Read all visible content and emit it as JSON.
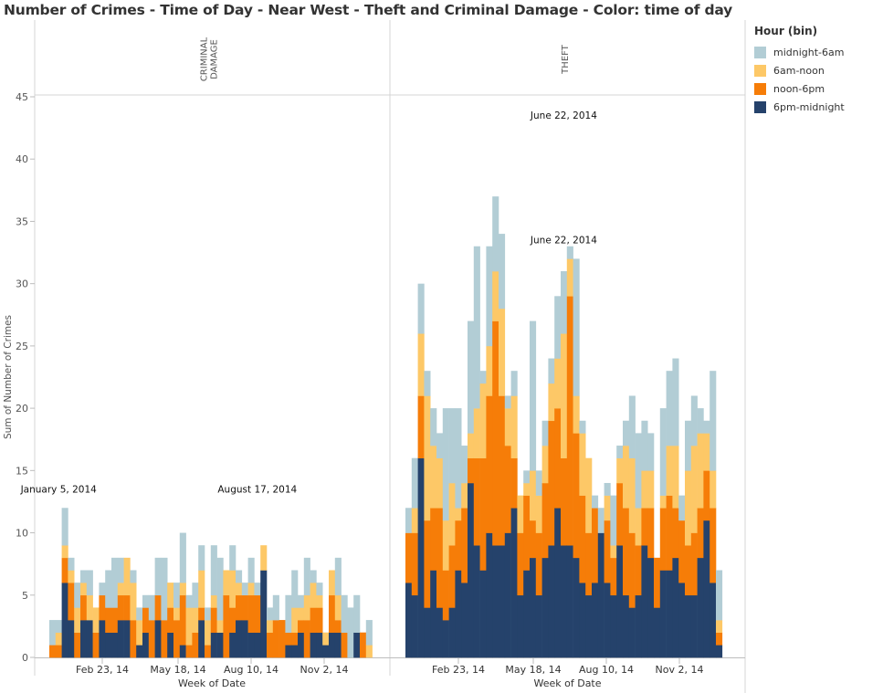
{
  "title": "Number of Crimes - Time of Day - Near West - Theft and Criminal Damage  - Color: time of day",
  "legend": {
    "title": "Hour (bin)",
    "items": [
      {
        "label": "midnight-6am",
        "color": "#b2cdd5"
      },
      {
        "label": "6am-noon",
        "color": "#fdc867"
      },
      {
        "label": "noon-6pm",
        "color": "#f67d08"
      },
      {
        "label": "6pm-midnight",
        "color": "#25426b"
      }
    ]
  },
  "chart_data": {
    "type": "bar",
    "stacked": true,
    "ylabel": "Sum of Number of Crimes",
    "xlabel": "Week of Date",
    "ylim": [
      0,
      45
    ],
    "yticks": [
      0,
      5,
      10,
      15,
      20,
      25,
      30,
      35,
      40,
      45
    ],
    "xticks": [
      "Feb 23, 14",
      "May 18, 14",
      "Aug 10, 14",
      "Nov 2, 14"
    ],
    "stack_order": [
      "6pm-midnight",
      "noon-6pm",
      "6am-noon",
      "midnight-6am"
    ],
    "panels": [
      {
        "name": "CRIMINAL DAMAGE",
        "weeks": 52,
        "series": [
          {
            "name": "6pm-midnight",
            "values": [
              0,
              0,
              6,
              3,
              0,
              3,
              3,
              0,
              3,
              2,
              2,
              3,
              3,
              0,
              1,
              2,
              0,
              3,
              0,
              2,
              0,
              1,
              0,
              0,
              3,
              0,
              2,
              2,
              0,
              2,
              3,
              3,
              2,
              2,
              7,
              0,
              0,
              0,
              1,
              1,
              2,
              0,
              2,
              2,
              1,
              2,
              2,
              0,
              0,
              2,
              0,
              0
            ]
          },
          {
            "name": "noon-6pm",
            "values": [
              1,
              1,
              2,
              3,
              2,
              2,
              0,
              2,
              2,
              2,
              2,
              2,
              2,
              3,
              0,
              2,
              3,
              2,
              3,
              2,
              3,
              4,
              1,
              2,
              1,
              1,
              2,
              0,
              5,
              2,
              2,
              2,
              3,
              3,
              0,
              2,
              3,
              3,
              1,
              1,
              1,
              3,
              2,
              2,
              0,
              3,
              1,
              2,
              0,
              0,
              2,
              0
            ]
          },
          {
            "name": "6am-noon",
            "values": [
              0,
              1,
              1,
              1,
              2,
              1,
              2,
              2,
              0,
              0,
              0,
              1,
              3,
              3,
              2,
              0,
              0,
              0,
              0,
              2,
              1,
              1,
              3,
              2,
              3,
              2,
              1,
              1,
              2,
              3,
              1,
              0,
              1,
              0,
              2,
              1,
              0,
              0,
              0,
              2,
              1,
              2,
              2,
              1,
              1,
              2,
              2,
              0,
              0,
              0,
              0,
              1
            ]
          },
          {
            "name": "midnight-6am",
            "values": [
              2,
              1,
              3,
              1,
              2,
              1,
              2,
              0,
              1,
              3,
              4,
              2,
              0,
              1,
              1,
              1,
              2,
              3,
              5,
              0,
              2,
              4,
              1,
              2,
              2,
              1,
              4,
              5,
              0,
              2,
              1,
              1,
              2,
              1,
              0,
              1,
              2,
              0,
              3,
              3,
              1,
              3,
              1,
              1,
              0,
              0,
              3,
              3,
              4,
              3,
              0,
              2
            ]
          }
        ],
        "annotations": [
          {
            "text": "January 5, 2014",
            "week": 1,
            "value": 12
          },
          {
            "text": "August 17, 2014",
            "week": 33,
            "value": 12
          }
        ]
      },
      {
        "name": "THEFT",
        "weeks": 52,
        "series": [
          {
            "name": "6pm-midnight",
            "values": [
              6,
              5,
              16,
              4,
              7,
              4,
              3,
              4,
              7,
              6,
              14,
              9,
              7,
              10,
              9,
              9,
              10,
              12,
              5,
              7,
              8,
              5,
              8,
              9,
              12,
              9,
              9,
              8,
              6,
              5,
              6,
              10,
              6,
              5,
              9,
              5,
              4,
              5,
              9,
              8,
              4,
              7,
              7,
              8,
              6,
              5,
              5,
              8,
              11,
              6,
              1,
              0
            ]
          },
          {
            "name": "noon-6pm",
            "values": [
              4,
              5,
              5,
              7,
              5,
              8,
              4,
              5,
              4,
              6,
              2,
              7,
              9,
              11,
              18,
              12,
              7,
              4,
              5,
              6,
              3,
              5,
              6,
              10,
              8,
              7,
              20,
              10,
              7,
              5,
              6,
              0,
              5,
              3,
              5,
              7,
              6,
              4,
              3,
              4,
              4,
              5,
              6,
              4,
              5,
              4,
              5,
              4,
              4,
              6,
              1,
              0
            ]
          },
          {
            "name": "6am-noon",
            "values": [
              0,
              2,
              5,
              10,
              5,
              4,
              4,
              5,
              1,
              2,
              2,
              4,
              6,
              4,
              4,
              7,
              3,
              5,
              3,
              1,
              4,
              3,
              3,
              3,
              4,
              10,
              3,
              3,
              5,
              6,
              0,
              0,
              2,
              1,
              2,
              5,
              6,
              3,
              3,
              3,
              0,
              1,
              4,
              5,
              0,
              6,
              7,
              6,
              3,
              3,
              1,
              0
            ]
          },
          {
            "name": "midnight-6am",
            "values": [
              2,
              4,
              4,
              2,
              3,
              2,
              9,
              6,
              8,
              3,
              9,
              13,
              1,
              8,
              6,
              6,
              1,
              2,
              0,
              1,
              12,
              2,
              2,
              2,
              5,
              5,
              1,
              11,
              1,
              0,
              1,
              2,
              1,
              4,
              1,
              2,
              5,
              6,
              4,
              3,
              0,
              7,
              6,
              7,
              2,
              4,
              4,
              2,
              1,
              8,
              4,
              0
            ]
          }
        ],
        "annotations": [
          {
            "text": "June 22, 2014",
            "week": 25,
            "value": 42
          },
          {
            "text": "June 22, 2014",
            "week": 25,
            "value": 32
          }
        ]
      }
    ]
  }
}
